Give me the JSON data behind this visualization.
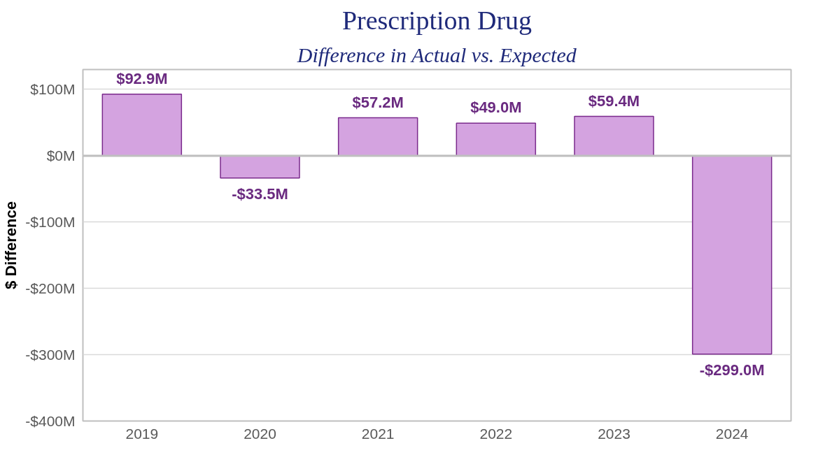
{
  "chart_data": {
    "type": "bar",
    "title": "Prescription Drug",
    "subtitle": "Difference in Actual vs. Expected",
    "ylabel": "$ Difference",
    "categories": [
      "2019",
      "2020",
      "2021",
      "2022",
      "2023",
      "2024"
    ],
    "series": [
      {
        "color": "#d4a3e0",
        "values": [
          92.9,
          -33.5,
          57.2,
          49.0,
          59.4,
          -299.0
        ],
        "value_labels": [
          "$92.9M",
          "-$33.5M",
          "$57.2M",
          "$49.0M",
          "$59.4M",
          "-$299.0M"
        ]
      }
    ],
    "ylim": [
      -400,
      130
    ],
    "yticks": [
      {
        "value": -400,
        "label": "-$400M"
      },
      {
        "value": -300,
        "label": "-$300M"
      },
      {
        "value": -200,
        "label": "-$200M"
      },
      {
        "value": -100,
        "label": "-$100M"
      },
      {
        "value": 0,
        "label": "$0M"
      },
      {
        "value": 100,
        "label": "$100M"
      }
    ],
    "grid": "y",
    "ref_lines": [
      {
        "axis": "y",
        "value": 0,
        "color": "#bfbfbf"
      }
    ]
  }
}
